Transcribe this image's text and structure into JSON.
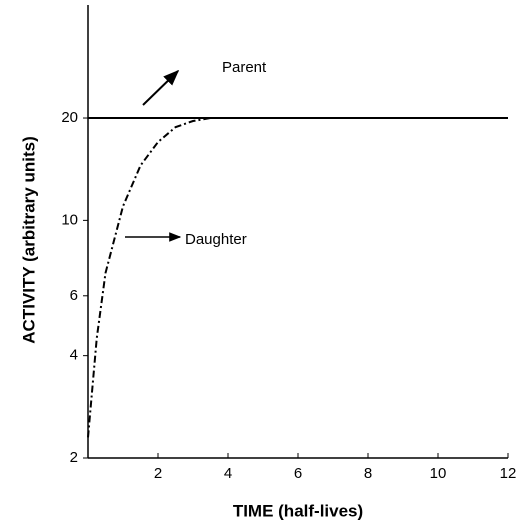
{
  "chart_data": {
    "type": "line",
    "xlabel": "TIME (half-lives)",
    "ylabel": "ACTIVITY (arbitrary units)",
    "yscale": "log",
    "xlim": [
      0,
      12
    ],
    "xticks": [
      2,
      4,
      6,
      8,
      10,
      12
    ],
    "ylim": [
      2,
      43
    ],
    "yticks": [
      2,
      4,
      6,
      10,
      20
    ],
    "series": [
      {
        "name": "Parent",
        "color": "#000000",
        "dash": "solid",
        "x": [
          0,
          12
        ],
        "values": [
          20,
          20
        ]
      },
      {
        "name": "Daughter",
        "color": "#000000",
        "dash": "dashdot",
        "x": [
          0,
          0.25,
          0.5,
          1,
          1.5,
          2,
          2.5,
          3,
          3.5
        ],
        "values": [
          2.3,
          4.5,
          7,
          11,
          14.5,
          17,
          18.8,
          19.6,
          20
        ]
      }
    ]
  }
}
